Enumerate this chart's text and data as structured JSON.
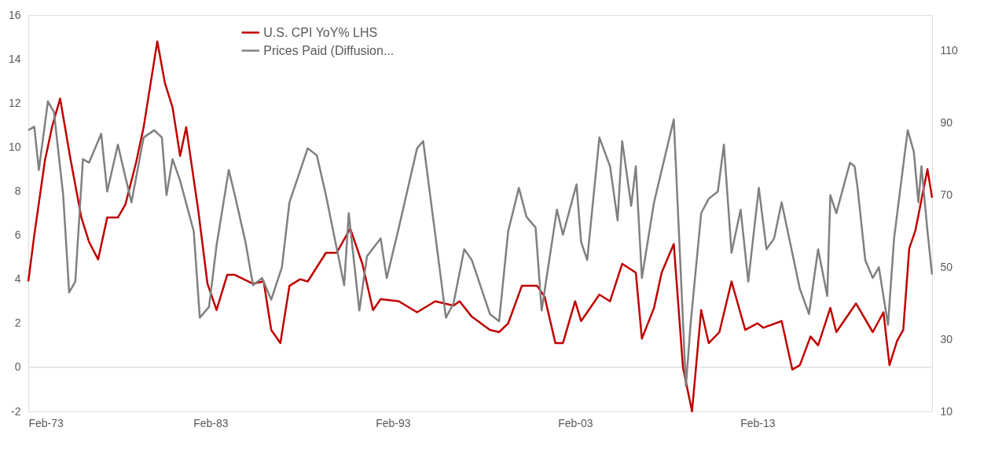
{
  "chart_data": {
    "type": "line",
    "xlim": [
      "1973-02",
      "2022-09"
    ],
    "xticks": [
      {
        "value": "1973-02",
        "label": "Feb-73"
      },
      {
        "value": "1983-02",
        "label": "Feb-83"
      },
      {
        "value": "1993-02",
        "label": "Feb-93"
      },
      {
        "value": "2003-02",
        "label": "Feb-03"
      },
      {
        "value": "2013-02",
        "label": "Feb-13"
      }
    ],
    "ylim": [
      -2,
      16
    ],
    "yticks": [
      -2,
      0,
      2,
      4,
      6,
      8,
      10,
      12,
      14,
      16
    ],
    "y2lim": [
      10,
      120
    ],
    "y2ticks": [
      10,
      30,
      50,
      70,
      90,
      110
    ],
    "grid": false,
    "legend": "top",
    "ref_lines": [
      {
        "axis": "y",
        "value": 0,
        "color": "#d9d9d9"
      }
    ],
    "series": [
      {
        "name": "U.S. CPI YoY% LHS",
        "color": "#c00000",
        "axis": "y",
        "x": [
          "1973-02",
          "1973-06",
          "1974-01",
          "1974-06",
          "1974-11",
          "1975-06",
          "1976-01",
          "1976-06",
          "1976-12",
          "1977-06",
          "1978-01",
          "1978-06",
          "1979-01",
          "1979-06",
          "1980-03",
          "1980-08",
          "1981-01",
          "1981-06",
          "1981-10",
          "1982-06",
          "1982-12",
          "1983-06",
          "1984-01",
          "1984-06",
          "1985-06",
          "1986-01",
          "1986-06",
          "1986-12",
          "1987-06",
          "1988-01",
          "1988-06",
          "1989-06",
          "1990-01",
          "1990-10",
          "1991-06",
          "1992-01",
          "1992-06",
          "1993-06",
          "1994-06",
          "1995-06",
          "1996-06",
          "1996-10",
          "1997-06",
          "1998-06",
          "1998-12",
          "1999-06",
          "2000-03",
          "2000-06",
          "2001-01",
          "2001-06",
          "2002-01",
          "2002-06",
          "2003-02",
          "2003-06",
          "2004-06",
          "2005-01",
          "2005-09",
          "2006-06",
          "2006-10",
          "2007-06",
          "2007-11",
          "2008-07",
          "2009-01",
          "2009-07",
          "2010-01",
          "2010-06",
          "2011-01",
          "2011-09",
          "2012-06",
          "2013-02",
          "2013-06",
          "2014-06",
          "2015-01",
          "2015-06",
          "2016-01",
          "2016-06",
          "2017-02",
          "2017-06",
          "2018-07",
          "2019-06",
          "2020-01",
          "2020-05",
          "2020-10",
          "2021-02",
          "2021-06",
          "2021-10",
          "2022-06",
          "2022-09"
        ],
        "values": [
          3.9,
          6.0,
          9.4,
          11.0,
          12.2,
          9.4,
          6.8,
          5.7,
          4.9,
          6.8,
          6.8,
          7.4,
          9.3,
          10.9,
          14.8,
          12.9,
          11.8,
          9.6,
          10.9,
          7.1,
          3.8,
          2.6,
          4.2,
          4.2,
          3.8,
          3.9,
          1.7,
          1.1,
          3.7,
          4.0,
          3.9,
          5.2,
          5.2,
          6.3,
          4.7,
          2.6,
          3.1,
          3.0,
          2.5,
          3.0,
          2.8,
          3.0,
          2.3,
          1.7,
          1.6,
          2.0,
          3.7,
          3.7,
          3.7,
          3.2,
          1.1,
          1.1,
          3.0,
          2.1,
          3.3,
          3.0,
          4.7,
          4.3,
          1.3,
          2.7,
          4.3,
          5.6,
          0.0,
          -2.0,
          2.6,
          1.1,
          1.6,
          3.9,
          1.7,
          2.0,
          1.8,
          2.1,
          -0.1,
          0.1,
          1.4,
          1.0,
          2.7,
          1.6,
          2.9,
          1.6,
          2.5,
          0.1,
          1.2,
          1.7,
          5.4,
          6.2,
          9.0,
          7.7
        ]
      },
      {
        "name": "Prices Paid (Diffusion...",
        "color": "#808080",
        "axis": "y2",
        "x": [
          "1973-02",
          "1973-06",
          "1973-09",
          "1974-03",
          "1974-07",
          "1975-01",
          "1975-05",
          "1975-09",
          "1976-02",
          "1976-06",
          "1977-02",
          "1977-06",
          "1978-01",
          "1978-06",
          "1978-10",
          "1979-06",
          "1980-01",
          "1980-06",
          "1980-09",
          "1981-01",
          "1981-06",
          "1982-03",
          "1982-07",
          "1983-01",
          "1983-06",
          "1984-02",
          "1984-06",
          "1985-01",
          "1985-06",
          "1985-12",
          "1986-06",
          "1987-01",
          "1987-06",
          "1988-06",
          "1988-12",
          "1989-06",
          "1990-06",
          "1990-09",
          "1991-04",
          "1991-09",
          "1992-06",
          "1992-10",
          "1993-06",
          "1994-06",
          "1994-10",
          "1995-06",
          "1996-01",
          "1996-06",
          "1997-01",
          "1997-06",
          "1998-06",
          "1998-12",
          "1999-06",
          "2000-01",
          "2000-06",
          "2000-12",
          "2001-04",
          "2002-02",
          "2002-06",
          "2003-03",
          "2003-06",
          "2003-10",
          "2004-06",
          "2005-01",
          "2005-06",
          "2005-09",
          "2006-03",
          "2006-06",
          "2006-10",
          "2007-06",
          "2008-07",
          "2009-01",
          "2009-03",
          "2009-06",
          "2010-01",
          "2010-06",
          "2010-12",
          "2011-04",
          "2011-09",
          "2012-03",
          "2012-08",
          "2013-03",
          "2013-08",
          "2014-01",
          "2014-06",
          "2015-06",
          "2015-12",
          "2016-06",
          "2016-12",
          "2017-02",
          "2017-06",
          "2018-03",
          "2018-06",
          "2018-08",
          "2019-01",
          "2019-06",
          "2019-10",
          "2020-04",
          "2020-08",
          "2021-05",
          "2021-09",
          "2021-12",
          "2022-02",
          "2022-06",
          "2022-08",
          "2022-09"
        ],
        "values": [
          88,
          89,
          77,
          96,
          93,
          70,
          43,
          46,
          80,
          79,
          87,
          71,
          84,
          75,
          68,
          86,
          88,
          86,
          70,
          80,
          74,
          60,
          36,
          39,
          56,
          77,
          70,
          57,
          45,
          47,
          41,
          50,
          68,
          83,
          81,
          70,
          45,
          65,
          38,
          53,
          58,
          47,
          61,
          83,
          85,
          59,
          36,
          40,
          55,
          52,
          37,
          35,
          60,
          72,
          64,
          61,
          38,
          66,
          59,
          73,
          57,
          52,
          86,
          78,
          63,
          85,
          67,
          78,
          47,
          68,
          91,
          35,
          17,
          34,
          65,
          69,
          71,
          84,
          54,
          66,
          46,
          72,
          55,
          58,
          68,
          44,
          37,
          55,
          42,
          70,
          65,
          79,
          78,
          72,
          52,
          47,
          50,
          34,
          58,
          88,
          82,
          68,
          78,
          60,
          52,
          48
        ]
      }
    ]
  }
}
